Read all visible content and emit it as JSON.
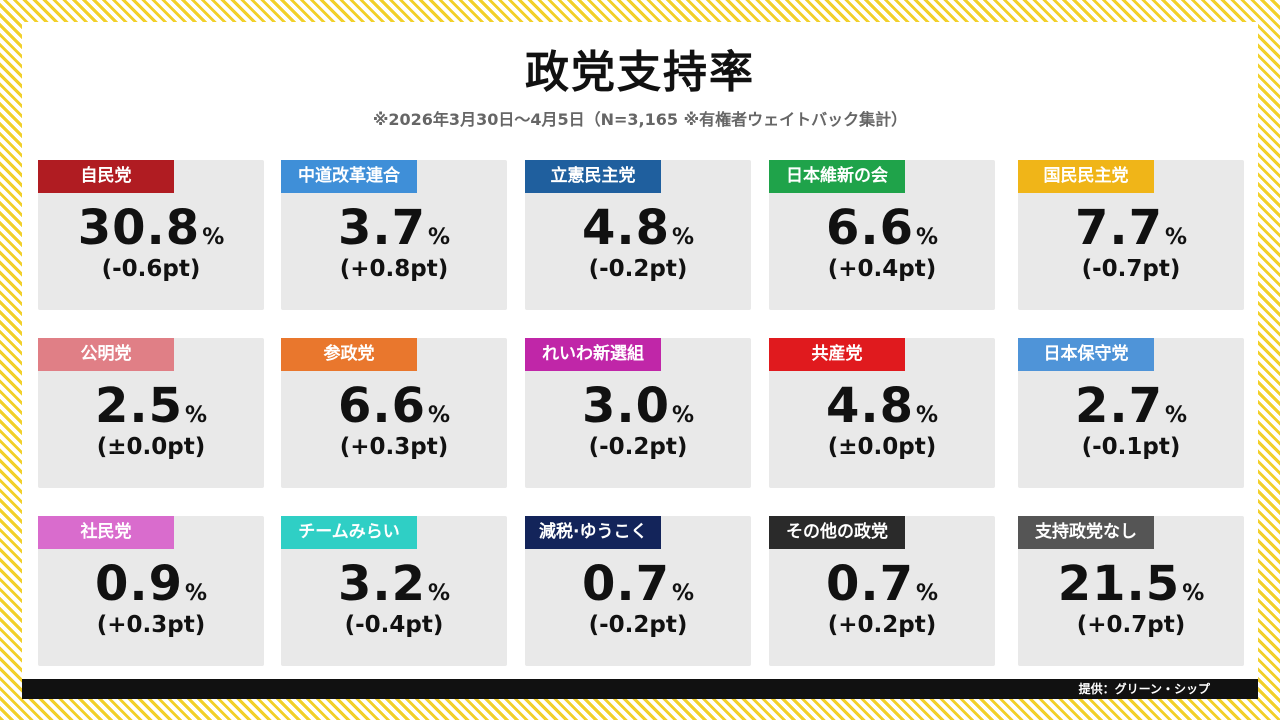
{
  "header": {
    "title": "政党支持率",
    "subtitle": "※2026年3月30日～4月5日（N=3,165 ※有権者ウェイトバック集計）"
  },
  "parties": [
    {
      "name": "自民党",
      "value": "30.8",
      "unit": "%",
      "change": "(-0.6pt)",
      "color": "#b01c22"
    },
    {
      "name": "中道改革連合",
      "value": "3.7",
      "unit": "%",
      "change": "(+0.8pt)",
      "color": "#3f8fd8"
    },
    {
      "name": "立憲民主党",
      "value": "4.8",
      "unit": "%",
      "change": "(-0.2pt)",
      "color": "#1f5f9e"
    },
    {
      "name": "日本維新の会",
      "value": "6.6",
      "unit": "%",
      "change": "(+0.4pt)",
      "color": "#1fa34a"
    },
    {
      "name": "国民民主党",
      "value": "7.7",
      "unit": "%",
      "change": "(-0.7pt)",
      "color": "#f0b518"
    },
    {
      "name": "公明党",
      "value": "2.5",
      "unit": "%",
      "change": "(±0.0pt)",
      "color": "#e07f86"
    },
    {
      "name": "参政党",
      "value": "6.6",
      "unit": "%",
      "change": "(+0.3pt)",
      "color": "#e9772d"
    },
    {
      "name": "れいわ新選組",
      "value": "3.0",
      "unit": "%",
      "change": "(-0.2pt)",
      "color": "#c026a8"
    },
    {
      "name": "共産党",
      "value": "4.8",
      "unit": "%",
      "change": "(±0.0pt)",
      "color": "#e01a1e"
    },
    {
      "name": "日本保守党",
      "value": "2.7",
      "unit": "%",
      "change": "(-0.1pt)",
      "color": "#4f94d8"
    },
    {
      "name": "社民党",
      "value": "0.9",
      "unit": "%",
      "change": "(+0.3pt)",
      "color": "#d96ccd"
    },
    {
      "name": "チームみらい",
      "value": "3.2",
      "unit": "%",
      "change": "(-0.4pt)",
      "color": "#2fcfc5"
    },
    {
      "name": "減税·ゆうこく",
      "value": "0.7",
      "unit": "%",
      "change": "(-0.2pt)",
      "color": "#13245a"
    },
    {
      "name": "その他の政党",
      "value": "0.7",
      "unit": "%",
      "change": "(+0.2pt)",
      "color": "#2a2a2a"
    },
    {
      "name": "支持政党なし",
      "value": "21.5",
      "unit": "%",
      "change": "(+0.7pt)",
      "color": "#555555"
    }
  ],
  "footer": {
    "credit": "提供：グリーン・シップ"
  }
}
